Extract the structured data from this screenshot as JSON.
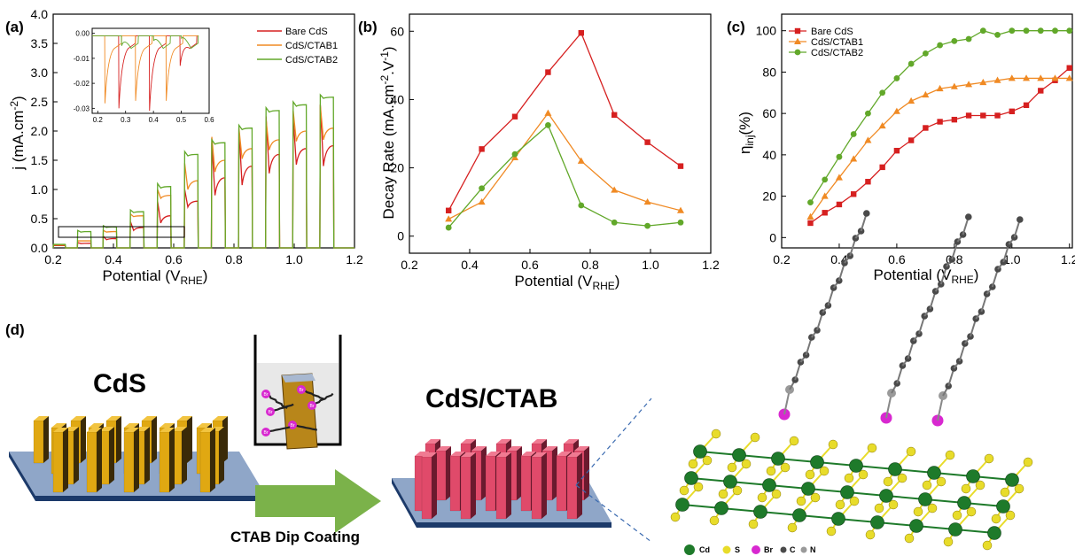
{
  "colors": {
    "bare": "#d62020",
    "ctab1": "#f08a24",
    "ctab2": "#62a82a",
    "cd": "#1e7a2a",
    "s": "#e8dc2a",
    "br": "#d828d0",
    "c": "#4a4a4a",
    "n": "#9a9a9a",
    "rod_cds": "#e0a812",
    "rod_ctab": "#e04a6a",
    "substrate": "#8fa6c8",
    "arrow": "#7bb24a"
  },
  "panels": {
    "a": {
      "label": "(a)",
      "xlabel": "Potential (V",
      "xlabel_sub": "RHE",
      "xlabel_end": ")",
      "ylabel": "j (mA.cm",
      "ylabel_sup": "-2",
      "ylabel_end": ")",
      "xticks": [
        "0.2",
        "0.4",
        "0.6",
        "0.8",
        "1.0",
        "1.2"
      ],
      "yticks": [
        "0.0",
        "0.5",
        "1.0",
        "1.5",
        "2.0",
        "2.5",
        "3.0",
        "3.5",
        "4.0"
      ],
      "legend": [
        "Bare CdS",
        "CdS/CTAB1",
        "CdS/CTAB2"
      ],
      "inset_xticks": [
        "0.2",
        "0.3",
        "0.4",
        "0.5",
        "0.6"
      ],
      "inset_yticks": [
        "0.00",
        "-0.01",
        "-0.02",
        "-0.03"
      ]
    },
    "b": {
      "label": "(b)",
      "xlabel": "Potential (V",
      "xlabel_sub": "RHE",
      "xlabel_end": ")",
      "ylabel": "Decay Rate (mA.cm",
      "ylabel_sup": "-2",
      "ylabel_mid": ".V",
      "ylabel_sup2": "-1",
      "ylabel_end": ")",
      "xticks": [
        "0.2",
        "0.4",
        "0.6",
        "0.8",
        "1.0",
        "1.2"
      ],
      "yticks": [
        "0",
        "20",
        "40",
        "60"
      ]
    },
    "c": {
      "label": "(c)",
      "xlabel": "Potential (V",
      "xlabel_sub": "RHE",
      "xlabel_end": ")",
      "ylabel": "η",
      "ylabel_sub": "inj",
      "ylabel_end": "(%)",
      "xticks": [
        "0.2",
        "0.4",
        "0.6",
        "0.8",
        "1.0",
        "1.2"
      ],
      "yticks": [
        "0",
        "20",
        "40",
        "60",
        "80",
        "100"
      ],
      "legend": [
        "Bare CdS",
        "CdS/CTAB1",
        "CdS/CTAB2"
      ]
    },
    "d": {
      "label": "(d)",
      "left_title": "CdS",
      "right_title": "CdS/CTAB",
      "arrow_label": "CTAB Dip Coating",
      "beaker_labels": [
        "Br",
        "Br",
        "Br",
        "Br",
        "Br",
        "Br"
      ],
      "atom_legend": [
        "Cd",
        "S",
        "Br",
        "C",
        "N"
      ]
    }
  },
  "chart_data": [
    {
      "panel": "a",
      "type": "line",
      "xlim": [
        0.2,
        1.2
      ],
      "ylim": [
        0,
        4.0
      ],
      "pulses": {
        "light_on": [
          0.2,
          0.28,
          0.365,
          0.455,
          0.545,
          0.635,
          0.725,
          0.815,
          0.905,
          0.995,
          1.085
        ],
        "light_off": [
          0.24,
          0.325,
          0.41,
          0.5,
          0.59,
          0.68,
          0.77,
          0.86,
          0.95,
          1.04,
          1.13
        ]
      },
      "series": [
        {
          "name": "Bare CdS",
          "peak": [
            0.04,
            0.09,
            0.2,
            0.45,
            0.8,
            1.0,
            1.8,
            2.05,
            2.25,
            2.25,
            2.45
          ],
          "plateau": [
            0.04,
            0.08,
            0.16,
            0.35,
            0.55,
            0.8,
            1.2,
            1.4,
            1.6,
            1.7,
            1.75
          ]
        },
        {
          "name": "CdS/CTAB1",
          "peak": [
            0.05,
            0.12,
            0.3,
            0.58,
            1.0,
            1.45,
            1.9,
            2.05,
            2.2,
            2.35,
            2.45
          ],
          "plateau": [
            0.05,
            0.12,
            0.28,
            0.55,
            0.9,
            1.15,
            1.5,
            1.7,
            1.85,
            2.0,
            2.05
          ]
        },
        {
          "name": "CdS/CTAB2",
          "peak": [
            0.06,
            0.3,
            0.38,
            0.65,
            1.1,
            1.65,
            1.85,
            2.1,
            2.4,
            2.5,
            2.62
          ],
          "plateau": [
            0.06,
            0.28,
            0.36,
            0.62,
            1.05,
            1.6,
            1.8,
            2.05,
            2.35,
            2.45,
            2.58
          ]
        }
      ],
      "inset": {
        "xlim": [
          0.18,
          0.6
        ],
        "ylim": [
          -0.032,
          0.002
        ],
        "series": [
          {
            "name": "Bare CdS",
            "spikes": [
              0.275,
              0.385,
              0.495
            ],
            "spike_depth": [
              -0.03,
              -0.031,
              -0.013
            ]
          },
          {
            "name": "CdS/CTAB1",
            "spikes": [
              0.225,
              0.335,
              0.445
            ],
            "spike_depth": [
              -0.028,
              -0.027,
              -0.027
            ]
          },
          {
            "name": "CdS/CTAB2",
            "spikes": [
              0.285,
              0.4,
              0.5
            ],
            "spike_depth": [
              -0.005,
              -0.003,
              -0.002
            ]
          }
        ]
      }
    },
    {
      "panel": "b",
      "type": "line",
      "xlim": [
        0.2,
        1.2
      ],
      "ylim": [
        -5,
        65
      ],
      "series": [
        {
          "name": "Bare CdS",
          "marker": "square",
          "x": [
            0.33,
            0.44,
            0.55,
            0.66,
            0.77,
            0.88,
            0.99,
            1.1
          ],
          "y": [
            7.5,
            25.5,
            35,
            48,
            59.5,
            35.5,
            27.5,
            20.5
          ]
        },
        {
          "name": "CdS/CTAB1",
          "marker": "triangle",
          "x": [
            0.33,
            0.44,
            0.55,
            0.66,
            0.77,
            0.88,
            0.99,
            1.1
          ],
          "y": [
            5,
            10,
            23,
            36,
            22,
            13.5,
            10,
            7.5
          ]
        },
        {
          "name": "CdS/CTAB2",
          "marker": "circle",
          "x": [
            0.33,
            0.44,
            0.55,
            0.66,
            0.77,
            0.88,
            0.99,
            1.1
          ],
          "y": [
            2.5,
            14,
            24,
            32.5,
            9,
            4,
            3,
            4
          ]
        }
      ]
    },
    {
      "panel": "c",
      "type": "line",
      "xlim": [
        0.2,
        1.21
      ],
      "ylim": [
        -5,
        108
      ],
      "series": [
        {
          "name": "Bare CdS",
          "marker": "square",
          "x": [
            0.3,
            0.35,
            0.4,
            0.45,
            0.5,
            0.55,
            0.6,
            0.65,
            0.7,
            0.75,
            0.8,
            0.85,
            0.9,
            0.95,
            1.0,
            1.05,
            1.1,
            1.15,
            1.2
          ],
          "y": [
            7,
            12,
            16,
            21,
            27,
            34,
            42,
            47,
            53,
            56,
            57,
            59,
            59,
            59,
            61,
            64,
            71,
            76,
            82
          ]
        },
        {
          "name": "CdS/CTAB1",
          "marker": "triangle",
          "x": [
            0.3,
            0.35,
            0.4,
            0.45,
            0.5,
            0.55,
            0.6,
            0.65,
            0.7,
            0.75,
            0.8,
            0.85,
            0.9,
            0.95,
            1.0,
            1.05,
            1.1,
            1.15,
            1.2
          ],
          "y": [
            10,
            20,
            29,
            38,
            47,
            54,
            61,
            66,
            69,
            72,
            73,
            74,
            75,
            76,
            77,
            77,
            77,
            77,
            77
          ]
        },
        {
          "name": "CdS/CTAB2",
          "marker": "circle",
          "x": [
            0.3,
            0.35,
            0.4,
            0.45,
            0.5,
            0.55,
            0.6,
            0.65,
            0.7,
            0.75,
            0.8,
            0.85,
            0.9,
            0.95,
            1.0,
            1.05,
            1.1,
            1.15,
            1.2
          ],
          "y": [
            17,
            28,
            39,
            50,
            60,
            70,
            77,
            84,
            89,
            93,
            95,
            96,
            100,
            98,
            100,
            100,
            100,
            100,
            100
          ]
        }
      ]
    }
  ]
}
